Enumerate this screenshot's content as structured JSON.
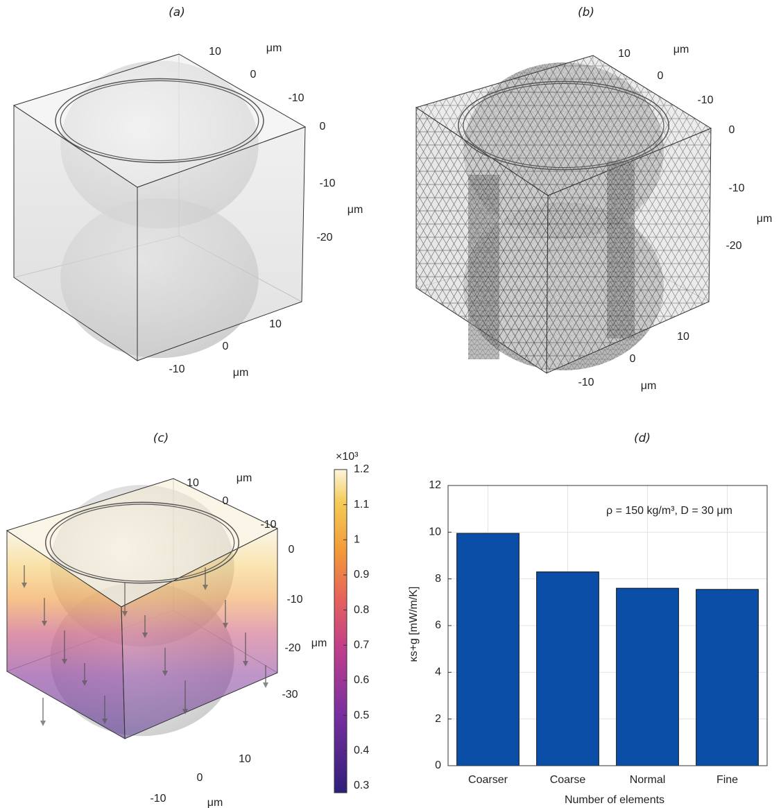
{
  "panels": [
    {
      "label": "(a)",
      "top_axis": {
        "ticks": [
          "10",
          "0",
          "-10"
        ],
        "unit": "μm"
      },
      "vertical_axis": {
        "ticks": [
          "0",
          "-10",
          "-20"
        ],
        "unit": "μm"
      },
      "bottom_axis": {
        "ticks": [
          "10",
          "0",
          "-10"
        ],
        "unit": "μm"
      }
    },
    {
      "label": "(b)",
      "top_axis": {
        "ticks": [
          "10",
          "0",
          "-10"
        ],
        "unit": "μm"
      },
      "vertical_axis": {
        "ticks": [
          "0",
          "-10",
          "-20"
        ],
        "unit": "μm"
      },
      "bottom_axis": {
        "ticks": [
          "10",
          "0",
          "-10"
        ],
        "unit": "μm"
      }
    },
    {
      "label": "(c)",
      "top_axis": {
        "ticks": [
          "10",
          "0",
          "-10"
        ],
        "unit": "μm"
      },
      "vertical_axis": {
        "ticks": [
          "0",
          "-10",
          "-20",
          "-30"
        ],
        "unit": "μm"
      },
      "bottom_axis": {
        "ticks": [
          "10",
          "0",
          "-10"
        ],
        "unit": "μm"
      },
      "colorbar": {
        "lim": [
          0.28,
          1.2
        ],
        "ticks": [
          0.3,
          0.4,
          0.5,
          0.6,
          0.7,
          0.8,
          0.9,
          1,
          1.1,
          1.2
        ],
        "multiplier": "×10³"
      }
    }
  ],
  "chart_data": {
    "type": "bar",
    "panel_label": "(d)",
    "annotation": "ρ = 150 kg/m³,  D = 30 μm",
    "x_label": "Number of elements",
    "y_label": "κs+g [mW/m/K]",
    "categories": [
      "Coarser",
      "Coarse",
      "Normal",
      "Fine"
    ],
    "values": [
      9.95,
      8.3,
      7.6,
      7.55
    ],
    "color": "#0a4ea8",
    "ylim": [
      0,
      12
    ],
    "yticks": [
      0,
      2,
      4,
      6,
      8,
      10,
      12
    ],
    "grid": true
  }
}
